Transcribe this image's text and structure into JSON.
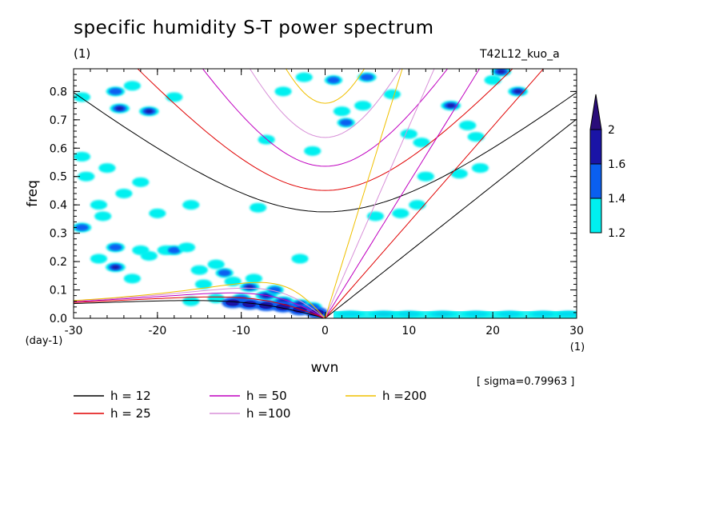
{
  "header": {
    "title": "specific humidity S-T power spectrum",
    "units_left": "(1)",
    "run_id": "T42L12_kuo_a"
  },
  "sigma_note": "[ sigma=0.79963 ]",
  "chart_data": {
    "type": "heatmap",
    "xlabel": "wvn",
    "ylabel": "freq",
    "x_unit": "(1)",
    "y_unit": "(day-1)",
    "xlim": [
      -30,
      30
    ],
    "ylim": [
      0,
      0.88
    ],
    "x_ticks": [
      -30,
      -20,
      -10,
      0,
      10,
      20,
      30
    ],
    "x_tick_labels": [
      "-30",
      "-20",
      "-10",
      "0",
      "10",
      "20",
      "30"
    ],
    "y_ticks": [
      0,
      0.1,
      0.2,
      0.3,
      0.4,
      0.5,
      0.6,
      0.7,
      0.8
    ],
    "y_tick_labels": [
      "0.0",
      "0.1",
      "0.2",
      "0.3",
      "0.4",
      "0.5",
      "0.6",
      "0.7",
      "0.8"
    ],
    "colorbar": {
      "levels": [
        1.2,
        1.4,
        1.6,
        2
      ],
      "labels": [
        "1.2",
        "1.4",
        "1.6",
        "2"
      ],
      "colors": [
        "#00f0f0",
        "#0a5ff0",
        "#1a14a6",
        "#2a0d7a"
      ]
    },
    "dispersion_curves": [
      {
        "label": "h = 12",
        "equivalent_depth": 12,
        "color": "#000000"
      },
      {
        "label": "h = 25",
        "equivalent_depth": 25,
        "color": "#e00000"
      },
      {
        "label": "h = 50",
        "equivalent_depth": 50,
        "color": "#c000c0"
      },
      {
        "label": "h =100",
        "equivalent_depth": 100,
        "color": "#d890d8"
      },
      {
        "label": "h =200",
        "equivalent_depth": 200,
        "color": "#f0c000"
      }
    ],
    "blobs": [
      {
        "x": -25,
        "y": 0.8,
        "v": 1.5
      },
      {
        "x": -23,
        "y": 0.82,
        "v": 1.3
      },
      {
        "x": -24.5,
        "y": 0.74,
        "v": 1.6
      },
      {
        "x": -21,
        "y": 0.73,
        "v": 1.6
      },
      {
        "x": -18,
        "y": 0.78,
        "v": 1.3
      },
      {
        "x": -29,
        "y": 0.78,
        "v": 1.3
      },
      {
        "x": -29,
        "y": 0.57,
        "v": 1.3
      },
      {
        "x": -28.5,
        "y": 0.5,
        "v": 1.3
      },
      {
        "x": -26,
        "y": 0.53,
        "v": 1.3
      },
      {
        "x": -22,
        "y": 0.48,
        "v": 1.3
      },
      {
        "x": -24,
        "y": 0.44,
        "v": 1.3
      },
      {
        "x": -27,
        "y": 0.4,
        "v": 1.3
      },
      {
        "x": -29,
        "y": 0.32,
        "v": 1.5
      },
      {
        "x": -26.5,
        "y": 0.36,
        "v": 1.3
      },
      {
        "x": -20,
        "y": 0.37,
        "v": 1.3
      },
      {
        "x": -25,
        "y": 0.25,
        "v": 1.5
      },
      {
        "x": -22,
        "y": 0.24,
        "v": 1.3
      },
      {
        "x": -19,
        "y": 0.24,
        "v": 1.3
      },
      {
        "x": -27,
        "y": 0.21,
        "v": 1.3
      },
      {
        "x": -25,
        "y": 0.18,
        "v": 1.6
      },
      {
        "x": -21,
        "y": 0.22,
        "v": 1.3
      },
      {
        "x": -18,
        "y": 0.24,
        "v": 1.4
      },
      {
        "x": -16.5,
        "y": 0.25,
        "v": 1.3
      },
      {
        "x": -23,
        "y": 0.14,
        "v": 1.3
      },
      {
        "x": -15,
        "y": 0.17,
        "v": 1.3
      },
      {
        "x": -13,
        "y": 0.19,
        "v": 1.3
      },
      {
        "x": -12,
        "y": 0.16,
        "v": 1.4
      },
      {
        "x": -14.5,
        "y": 0.12,
        "v": 1.3
      },
      {
        "x": -11,
        "y": 0.13,
        "v": 1.3
      },
      {
        "x": -9,
        "y": 0.11,
        "v": 1.6
      },
      {
        "x": -8.5,
        "y": 0.14,
        "v": 1.3
      },
      {
        "x": -7,
        "y": 0.08,
        "v": 1.8
      },
      {
        "x": -5,
        "y": 0.06,
        "v": 1.8
      },
      {
        "x": -3,
        "y": 0.05,
        "v": 1.7
      },
      {
        "x": -10,
        "y": 0.07,
        "v": 1.5
      },
      {
        "x": -13,
        "y": 0.07,
        "v": 1.3
      },
      {
        "x": -16,
        "y": 0.06,
        "v": 1.3
      },
      {
        "x": -6,
        "y": 0.1,
        "v": 1.4
      },
      {
        "x": -1.5,
        "y": 0.04,
        "v": 1.5
      },
      {
        "x": 3,
        "y": 0.015,
        "v": 1.5
      },
      {
        "x": 7,
        "y": 0.015,
        "v": 1.6
      },
      {
        "x": 10,
        "y": 0.015,
        "v": 1.5
      },
      {
        "x": 14,
        "y": 0.015,
        "v": 1.6
      },
      {
        "x": 18,
        "y": 0.015,
        "v": 1.5
      },
      {
        "x": 22,
        "y": 0.015,
        "v": 1.4
      },
      {
        "x": 26,
        "y": 0.015,
        "v": 1.5
      },
      {
        "x": 29,
        "y": 0.015,
        "v": 1.4
      },
      {
        "x": -8,
        "y": 0.39,
        "v": 1.3
      },
      {
        "x": -7,
        "y": 0.63,
        "v": 1.3
      },
      {
        "x": -5,
        "y": 0.8,
        "v": 1.3
      },
      {
        "x": -2.5,
        "y": 0.85,
        "v": 1.3
      },
      {
        "x": -1.5,
        "y": 0.59,
        "v": 1.3
      },
      {
        "x": 1,
        "y": 0.84,
        "v": 1.4
      },
      {
        "x": 2,
        "y": 0.73,
        "v": 1.3
      },
      {
        "x": 2.5,
        "y": 0.69,
        "v": 1.4
      },
      {
        "x": 4.5,
        "y": 0.75,
        "v": 1.3
      },
      {
        "x": 5,
        "y": 0.85,
        "v": 1.5
      },
      {
        "x": 8,
        "y": 0.79,
        "v": 1.3
      },
      {
        "x": 10,
        "y": 0.65,
        "v": 1.3
      },
      {
        "x": 11.5,
        "y": 0.62,
        "v": 1.3
      },
      {
        "x": 15,
        "y": 0.75,
        "v": 1.6
      },
      {
        "x": 17,
        "y": 0.68,
        "v": 1.3
      },
      {
        "x": 18,
        "y": 0.64,
        "v": 1.3
      },
      {
        "x": 20,
        "y": 0.84,
        "v": 1.3
      },
      {
        "x": 21,
        "y": 0.87,
        "v": 1.6
      },
      {
        "x": 23,
        "y": 0.8,
        "v": 1.6
      },
      {
        "x": 16,
        "y": 0.51,
        "v": 1.3
      },
      {
        "x": 12,
        "y": 0.5,
        "v": 1.3
      },
      {
        "x": 9,
        "y": 0.37,
        "v": 1.3
      },
      {
        "x": 6,
        "y": 0.36,
        "v": 1.3
      },
      {
        "x": 11,
        "y": 0.4,
        "v": 1.3
      },
      {
        "x": 18.5,
        "y": 0.53,
        "v": 1.3
      },
      {
        "x": -16,
        "y": 0.4,
        "v": 1.3
      },
      {
        "x": -3,
        "y": 0.21,
        "v": 1.3
      }
    ]
  }
}
